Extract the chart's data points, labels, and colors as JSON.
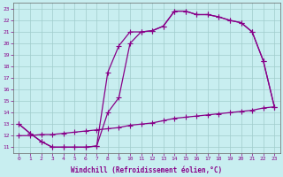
{
  "xlabel": "Windchill (Refroidissement éolien,°C)",
  "ylabel": "",
  "xlim": [
    -0.5,
    23.5
  ],
  "ylim": [
    10.5,
    23.5
  ],
  "xticks": [
    0,
    1,
    2,
    3,
    4,
    5,
    6,
    7,
    8,
    9,
    10,
    11,
    12,
    13,
    14,
    15,
    16,
    17,
    18,
    19,
    20,
    21,
    22,
    23
  ],
  "yticks": [
    11,
    12,
    13,
    14,
    15,
    16,
    17,
    18,
    19,
    20,
    21,
    22,
    23
  ],
  "bg_color": "#c8eef0",
  "grid_color": "#a0cccc",
  "line_color": "#880088",
  "line1_x": [
    0,
    1,
    2,
    3,
    4,
    5,
    6,
    7,
    8,
    9,
    10,
    11,
    12,
    13,
    14,
    15,
    16,
    17,
    18,
    19,
    20,
    21,
    22,
    23
  ],
  "line1_y": [
    13.0,
    12.2,
    11.5,
    11.0,
    11.0,
    11.0,
    11.0,
    11.1,
    17.5,
    19.8,
    21.0,
    21.0,
    21.1,
    21.5,
    22.8,
    22.8,
    22.5,
    22.5,
    22.3,
    22.0,
    21.8,
    21.0,
    18.5,
    14.5
  ],
  "line2_x": [
    0,
    1,
    2,
    3,
    4,
    5,
    6,
    7,
    8,
    9,
    10,
    11,
    12,
    13,
    14,
    15,
    16,
    17,
    18,
    19,
    20,
    21,
    22,
    23
  ],
  "line2_y": [
    13.0,
    12.2,
    11.5,
    11.0,
    11.0,
    11.0,
    11.0,
    11.1,
    14.0,
    15.3,
    20.0,
    21.0,
    21.1,
    21.5,
    22.8,
    22.8,
    22.5,
    22.5,
    22.3,
    22.0,
    21.8,
    21.0,
    18.5,
    14.5
  ],
  "line3_x": [
    0,
    1,
    2,
    3,
    4,
    5,
    6,
    7,
    8,
    9,
    10,
    11,
    12,
    13,
    14,
    15,
    16,
    17,
    18,
    19,
    20,
    21,
    22,
    23
  ],
  "line3_y": [
    12.0,
    12.0,
    12.1,
    12.1,
    12.2,
    12.3,
    12.4,
    12.5,
    12.6,
    12.7,
    12.9,
    13.0,
    13.1,
    13.3,
    13.5,
    13.6,
    13.7,
    13.8,
    13.9,
    14.0,
    14.1,
    14.2,
    14.4,
    14.5
  ],
  "marker": "+",
  "markersize": 4,
  "linewidth": 0.9
}
